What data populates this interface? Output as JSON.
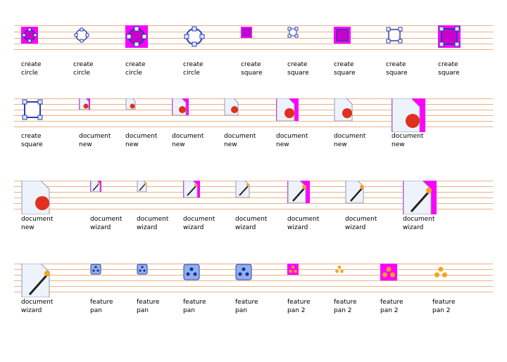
{
  "colors": {
    "magenta": "#ff00ff",
    "line": "#e7b18a",
    "blue": "#2a3fb0",
    "lightblue": "#cfe0ff",
    "red": "#e0301e",
    "orange": "#f7a21a"
  },
  "rows": [
    {
      "items": [
        {
          "icon": "create-circle-icon",
          "line1": "create",
          "line2": "circle"
        },
        {
          "icon": "create-circle-icon",
          "line1": "create",
          "line2": "circle"
        },
        {
          "icon": "create-circle-icon",
          "line1": "create",
          "line2": "circle"
        },
        {
          "icon": "create-circle-icon",
          "line1": "create",
          "line2": "circle"
        },
        {
          "icon": "create-square-icon",
          "line1": "create",
          "line2": "square"
        },
        {
          "icon": "create-square-icon",
          "line1": "create",
          "line2": "square"
        },
        {
          "icon": "create-square-icon",
          "line1": "create",
          "line2": "square"
        },
        {
          "icon": "create-square-icon",
          "line1": "create",
          "line2": "square"
        },
        {
          "icon": "create-square-icon",
          "line1": "create",
          "line2": "square"
        }
      ]
    },
    {
      "items": [
        {
          "icon": "create-square-icon",
          "line1": "create",
          "line2": "square"
        },
        {
          "icon": "document-new-icon",
          "line1": "document",
          "line2": "new"
        },
        {
          "icon": "document-new-icon",
          "line1": "document",
          "line2": "new"
        },
        {
          "icon": "document-new-icon",
          "line1": "document",
          "line2": "new"
        },
        {
          "icon": "document-new-icon",
          "line1": "document",
          "line2": "new"
        },
        {
          "icon": "document-new-icon",
          "line1": "document",
          "line2": "new"
        },
        {
          "icon": "document-new-icon",
          "line1": "document",
          "line2": "new"
        },
        {
          "icon": "document-new-icon",
          "line1": "document",
          "line2": "new"
        }
      ]
    },
    {
      "items": [
        {
          "icon": "document-new-icon",
          "line1": "document",
          "line2": "new"
        },
        {
          "icon": "document-wizard-icon",
          "line1": "document",
          "line2": "wizard"
        },
        {
          "icon": "document-wizard-icon",
          "line1": "document",
          "line2": "wizard"
        },
        {
          "icon": "document-wizard-icon",
          "line1": "document",
          "line2": "wizard"
        },
        {
          "icon": "document-wizard-icon",
          "line1": "document",
          "line2": "wizard"
        },
        {
          "icon": "document-wizard-icon",
          "line1": "document",
          "line2": "wizard"
        },
        {
          "icon": "document-wizard-icon",
          "line1": "document",
          "line2": "wizard"
        },
        {
          "icon": "document-wizard-icon",
          "line1": "document",
          "line2": "wizard"
        }
      ]
    },
    {
      "items": [
        {
          "icon": "document-wizard-icon",
          "line1": "document",
          "line2": "wizard"
        },
        {
          "icon": "feature-pan-icon",
          "line1": "feature",
          "line2": "pan"
        },
        {
          "icon": "feature-pan-icon",
          "line1": "feature",
          "line2": "pan"
        },
        {
          "icon": "feature-pan-icon",
          "line1": "feature",
          "line2": "pan"
        },
        {
          "icon": "feature-pan-icon",
          "line1": "feature",
          "line2": "pan"
        },
        {
          "icon": "feature-pan-2-icon",
          "line1": "feature",
          "line2": "pan 2"
        },
        {
          "icon": "feature-pan-2-icon",
          "line1": "feature",
          "line2": "pan 2"
        },
        {
          "icon": "feature-pan-2-icon",
          "line1": "feature",
          "line2": "pan 2"
        },
        {
          "icon": "feature-pan-2-icon",
          "line1": "feature",
          "line2": "pan 2"
        }
      ]
    }
  ]
}
